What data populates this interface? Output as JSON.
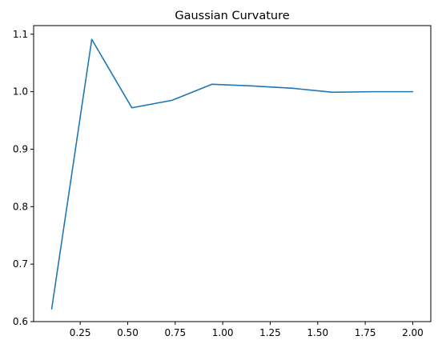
{
  "chart_data": {
    "type": "line",
    "title": "Gaussian Curvature",
    "xlabel": "",
    "ylabel": "",
    "x": [
      0.1,
      0.311,
      0.522,
      0.733,
      0.944,
      1.156,
      1.367,
      1.578,
      1.789,
      2.0
    ],
    "series": [
      {
        "values": [
          0.622,
          1.091,
          0.972,
          0.985,
          1.013,
          1.01,
          1.006,
          0.999,
          1.0,
          1.0
        ],
        "color": "#1f77b4"
      }
    ],
    "xlim": [
      0.005,
      2.095
    ],
    "ylim": [
      0.6,
      1.115
    ],
    "xticks": [
      0.25,
      0.5,
      0.75,
      1.0,
      1.25,
      1.5,
      1.75,
      2.0
    ],
    "xtick_labels": [
      "0.25",
      "0.50",
      "0.75",
      "1.00",
      "1.25",
      "1.50",
      "1.75",
      "2.00"
    ],
    "yticks": [
      0.6,
      0.7,
      0.8,
      0.9,
      1.0,
      1.1
    ],
    "ytick_labels": [
      "0.6",
      "0.7",
      "0.8",
      "0.9",
      "1.0",
      "1.1"
    ],
    "grid": false,
    "legend": "none"
  }
}
